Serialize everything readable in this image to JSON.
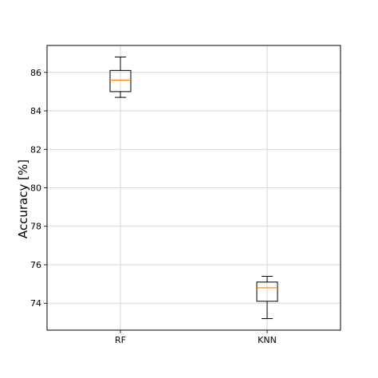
{
  "chart_data": {
    "type": "box",
    "categories": [
      "RF",
      "KNN"
    ],
    "boxes": [
      {
        "name": "RF",
        "whisker_low": 84.7,
        "q1": 85.0,
        "median": 85.6,
        "q3": 86.1,
        "whisker_high": 86.8
      },
      {
        "name": "KNN",
        "whisker_low": 73.2,
        "q1": 74.1,
        "median": 74.8,
        "q3": 75.1,
        "whisker_high": 75.4
      }
    ],
    "ylabel": "Accuracy [%]",
    "xlabel": "",
    "ylim": [
      72.6,
      87.4
    ],
    "yticks": [
      74,
      76,
      78,
      80,
      82,
      84,
      86
    ],
    "grid": true,
    "colors": {
      "box": "#000000",
      "median": "#ff7f0e",
      "grid": "#cccccc"
    }
  }
}
